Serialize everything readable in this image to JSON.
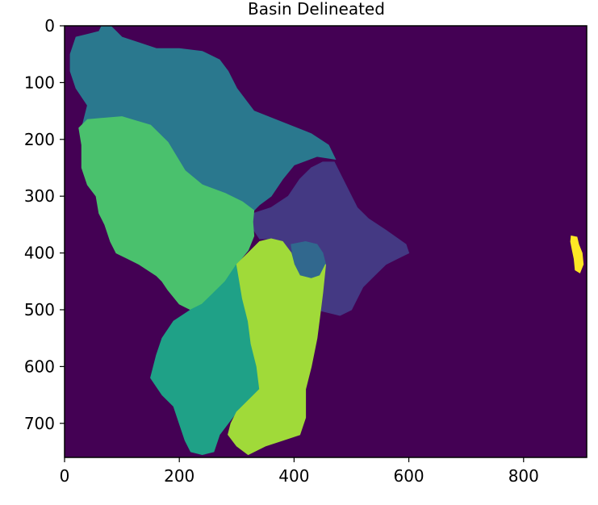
{
  "chart_data": {
    "type": "heatmap",
    "title": "Basin Delineated",
    "xlabel": "",
    "ylabel": "",
    "xlim": [
      0,
      910
    ],
    "ylim": [
      760,
      0
    ],
    "xticks": [
      0,
      200,
      400,
      600,
      800
    ],
    "yticks": [
      0,
      100,
      200,
      300,
      400,
      500,
      600,
      700
    ],
    "background_color": "#440154",
    "grid": false,
    "legend": "none",
    "basins": [
      {
        "id": "northern-basin",
        "color": "#2a788e",
        "outline": [
          [
            60,
            10
          ],
          [
            65,
            0
          ],
          [
            80,
            0
          ],
          [
            90,
            10
          ],
          [
            100,
            20
          ],
          [
            130,
            30
          ],
          [
            160,
            40
          ],
          [
            200,
            40
          ],
          [
            240,
            45
          ],
          [
            270,
            60
          ],
          [
            285,
            80
          ],
          [
            300,
            110
          ],
          [
            330,
            150
          ],
          [
            380,
            170
          ],
          [
            430,
            190
          ],
          [
            460,
            210
          ],
          [
            472,
            235
          ],
          [
            440,
            230
          ],
          [
            400,
            245
          ],
          [
            380,
            270
          ],
          [
            360,
            300
          ],
          [
            340,
            315
          ],
          [
            330,
            325
          ],
          [
            310,
            310
          ],
          [
            280,
            295
          ],
          [
            240,
            280
          ],
          [
            210,
            255
          ],
          [
            180,
            210
          ],
          [
            150,
            180
          ],
          [
            100,
            165
          ],
          [
            40,
            165
          ],
          [
            30,
            180
          ],
          [
            40,
            140
          ],
          [
            20,
            110
          ],
          [
            10,
            80
          ],
          [
            10,
            50
          ],
          [
            20,
            20
          ],
          [
            40,
            15
          ]
        ]
      },
      {
        "id": "eastern-basin",
        "color": "#443983",
        "outline": [
          [
            330,
            330
          ],
          [
            360,
            320
          ],
          [
            390,
            300
          ],
          [
            410,
            270
          ],
          [
            430,
            250
          ],
          [
            450,
            240
          ],
          [
            470,
            240
          ],
          [
            480,
            260
          ],
          [
            490,
            280
          ],
          [
            500,
            300
          ],
          [
            510,
            320
          ],
          [
            530,
            340
          ],
          [
            560,
            360
          ],
          [
            595,
            385
          ],
          [
            600,
            400
          ],
          [
            580,
            410
          ],
          [
            560,
            420
          ],
          [
            540,
            440
          ],
          [
            520,
            460
          ],
          [
            510,
            480
          ],
          [
            500,
            500
          ],
          [
            480,
            510
          ],
          [
            460,
            505
          ],
          [
            440,
            500
          ],
          [
            430,
            490
          ],
          [
            425,
            470
          ],
          [
            420,
            450
          ],
          [
            410,
            440
          ],
          [
            400,
            420
          ],
          [
            395,
            400
          ],
          [
            380,
            380
          ],
          [
            360,
            375
          ],
          [
            340,
            375
          ],
          [
            330,
            360
          ],
          [
            328,
            345
          ]
        ]
      },
      {
        "id": "confluence-basin",
        "color": "#31688e",
        "outline": [
          [
            395,
            385
          ],
          [
            420,
            380
          ],
          [
            440,
            385
          ],
          [
            450,
            400
          ],
          [
            455,
            420
          ],
          [
            445,
            440
          ],
          [
            430,
            445
          ],
          [
            410,
            440
          ],
          [
            400,
            420
          ]
        ]
      },
      {
        "id": "western-basin",
        "color": "#4ac16d",
        "outline": [
          [
            40,
            165
          ],
          [
            100,
            160
          ],
          [
            150,
            175
          ],
          [
            180,
            205
          ],
          [
            210,
            255
          ],
          [
            240,
            280
          ],
          [
            280,
            295
          ],
          [
            310,
            310
          ],
          [
            330,
            325
          ],
          [
            328,
            345
          ],
          [
            330,
            370
          ],
          [
            320,
            395
          ],
          [
            300,
            420
          ],
          [
            280,
            450
          ],
          [
            260,
            470
          ],
          [
            240,
            490
          ],
          [
            220,
            500
          ],
          [
            200,
            490
          ],
          [
            180,
            465
          ],
          [
            170,
            450
          ],
          [
            160,
            440
          ],
          [
            130,
            420
          ],
          [
            110,
            410
          ],
          [
            90,
            400
          ],
          [
            80,
            380
          ],
          [
            70,
            350
          ],
          [
            60,
            330
          ],
          [
            55,
            300
          ],
          [
            40,
            280
          ],
          [
            30,
            250
          ],
          [
            30,
            210
          ],
          [
            25,
            180
          ]
        ]
      },
      {
        "id": "southwest-basin",
        "color": "#1fa187",
        "outline": [
          [
            220,
            500
          ],
          [
            240,
            490
          ],
          [
            260,
            470
          ],
          [
            280,
            450
          ],
          [
            300,
            420
          ],
          [
            305,
            450
          ],
          [
            310,
            480
          ],
          [
            320,
            520
          ],
          [
            325,
            560
          ],
          [
            335,
            600
          ],
          [
            340,
            640
          ],
          [
            320,
            660
          ],
          [
            300,
            680
          ],
          [
            285,
            700
          ],
          [
            270,
            720
          ],
          [
            260,
            750
          ],
          [
            240,
            755
          ],
          [
            220,
            750
          ],
          [
            210,
            730
          ],
          [
            200,
            700
          ],
          [
            190,
            670
          ],
          [
            170,
            650
          ],
          [
            150,
            620
          ],
          [
            160,
            580
          ],
          [
            170,
            550
          ],
          [
            190,
            520
          ]
        ]
      },
      {
        "id": "southern-basin",
        "color": "#a0da39",
        "outline": [
          [
            300,
            420
          ],
          [
            320,
            400
          ],
          [
            340,
            380
          ],
          [
            360,
            375
          ],
          [
            380,
            380
          ],
          [
            395,
            400
          ],
          [
            400,
            420
          ],
          [
            410,
            440
          ],
          [
            430,
            445
          ],
          [
            445,
            440
          ],
          [
            455,
            420
          ],
          [
            450,
            470
          ],
          [
            445,
            510
          ],
          [
            440,
            550
          ],
          [
            430,
            600
          ],
          [
            420,
            640
          ],
          [
            420,
            690
          ],
          [
            410,
            720
          ],
          [
            380,
            730
          ],
          [
            350,
            740
          ],
          [
            320,
            755
          ],
          [
            300,
            740
          ],
          [
            285,
            720
          ],
          [
            290,
            700
          ],
          [
            300,
            680
          ],
          [
            320,
            660
          ],
          [
            340,
            640
          ],
          [
            335,
            600
          ],
          [
            325,
            560
          ],
          [
            320,
            520
          ],
          [
            310,
            480
          ],
          [
            305,
            450
          ]
        ]
      },
      {
        "id": "outlier-basin",
        "color": "#fde725",
        "outline": [
          [
            883,
            370
          ],
          [
            893,
            372
          ],
          [
            896,
            385
          ],
          [
            902,
            400
          ],
          [
            904,
            420
          ],
          [
            898,
            435
          ],
          [
            890,
            430
          ],
          [
            888,
            410
          ],
          [
            885,
            395
          ],
          [
            882,
            380
          ]
        ]
      }
    ]
  }
}
